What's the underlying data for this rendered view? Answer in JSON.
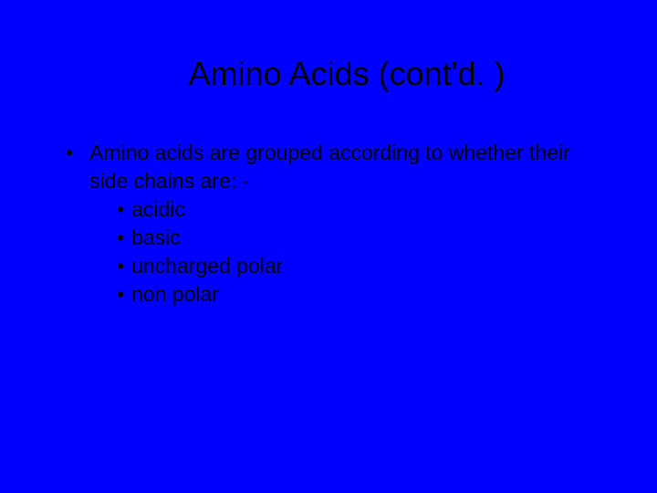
{
  "slide": {
    "background_color": "#0000ff",
    "text_color": "#000000",
    "title": "Amino Acids  (cont'd. )",
    "title_fontsize": 36,
    "body_fontsize": 23,
    "font_family": "Arial",
    "bullets": {
      "level1": {
        "marker": "•",
        "text": "Amino acids are grouped according to whether their side chains are: -"
      },
      "level2": [
        {
          "marker": "•",
          "text": "acidic"
        },
        {
          "marker": "•",
          "text": "basic"
        },
        {
          "marker": "•",
          "text": "uncharged polar"
        },
        {
          "marker": "•",
          "text": "non polar"
        }
      ]
    }
  }
}
